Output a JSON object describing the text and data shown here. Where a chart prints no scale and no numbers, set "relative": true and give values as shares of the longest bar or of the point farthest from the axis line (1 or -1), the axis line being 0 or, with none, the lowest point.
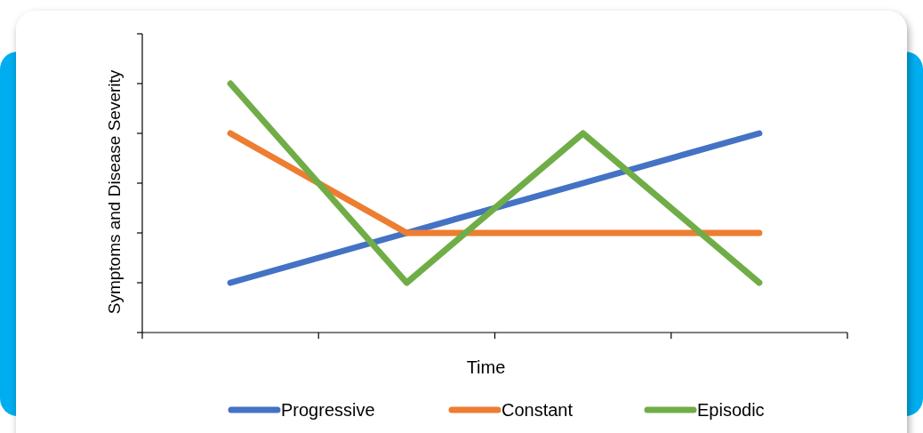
{
  "chart_data": {
    "type": "line",
    "relative": true,
    "xlabel": "Time",
    "ylabel": "Symptoms and Disease Severity",
    "categories": [
      null,
      null,
      null,
      null
    ],
    "series": [
      {
        "name": "Progressive",
        "color": "#4472c4",
        "values": [
          0.2,
          0.4,
          0.6,
          0.8
        ]
      },
      {
        "name": "Constant",
        "color": "#ed7d31",
        "values": [
          0.8,
          0.4,
          0.4,
          0.4
        ]
      },
      {
        "name": "Episodic",
        "color": "#70ad47",
        "values": [
          1,
          0.2,
          0.8,
          0.2
        ]
      }
    ],
    "legend": "bottom",
    "marker": "none",
    "line_style": "solid"
  }
}
